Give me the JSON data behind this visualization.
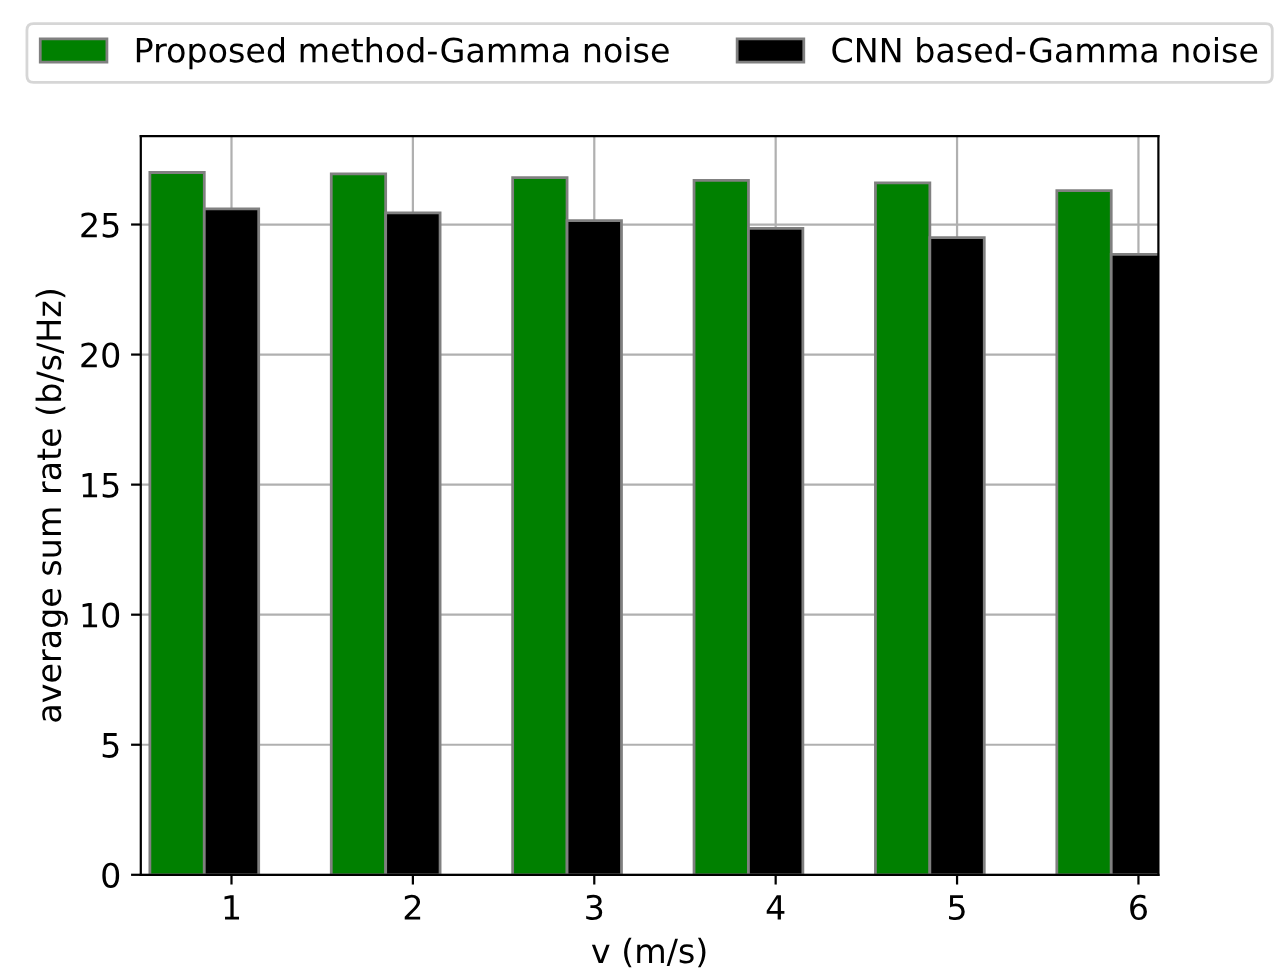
{
  "chart_data": {
    "type": "bar",
    "categories": [
      "1",
      "2",
      "3",
      "4",
      "5",
      "6"
    ],
    "xlabel": "v (m/s)",
    "ylabel": "average sum rate (b/s/Hz)",
    "series": [
      {
        "name": "Proposed method-Gamma noise",
        "color": "#008000",
        "values": [
          27.0,
          26.95,
          26.8,
          26.7,
          26.6,
          26.3
        ]
      },
      {
        "name": "CNN based-Gamma noise",
        "color": "#000000",
        "values": [
          25.6,
          25.45,
          25.15,
          24.85,
          24.5,
          23.85
        ]
      }
    ],
    "ylim": [
      0,
      28.4
    ],
    "yticks": [
      0,
      5,
      10,
      15,
      20,
      25
    ],
    "grid": true,
    "legend": "top"
  }
}
